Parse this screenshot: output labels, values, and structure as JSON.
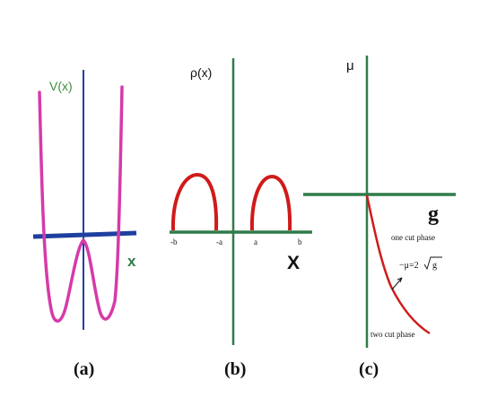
{
  "colors": {
    "potential": "#d63aa9",
    "blue_axis": "#1f3fa0",
    "green_axis": "#2f7b4a",
    "density": "#d01a1a",
    "text_green": "#3c8b3f",
    "text_dark": "#111111"
  },
  "panel_a": {
    "ylabel": "V(x)",
    "xlabel": "x",
    "caption": "(a)"
  },
  "panel_b": {
    "ylabel": "ρ(x)",
    "xlabel": "X",
    "ticks": [
      "-b",
      "-a",
      "a",
      "b"
    ],
    "caption": "(b)"
  },
  "panel_c": {
    "ylabel": "μ",
    "xlabel": "g",
    "one_cut": "one cut phase",
    "curve_label_pre": "−μ=2",
    "curve_label_rad": "g",
    "two_cut": "two cut phase",
    "caption": "(c)"
  }
}
